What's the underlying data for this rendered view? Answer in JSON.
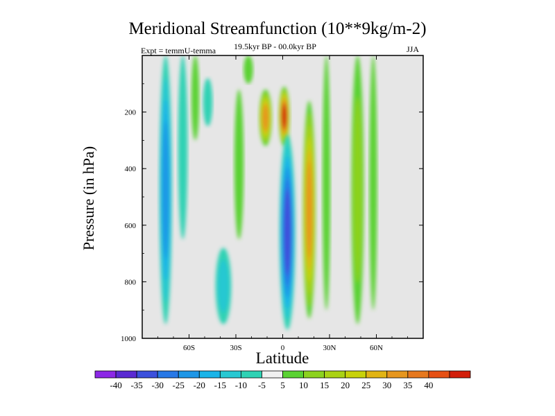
{
  "title": "Meridional Streamfunction (10**9kg/m-2)",
  "experiment_label": "Expt = temmU-temma",
  "period_label": "19.5kyr BP - 00.0kyr BP",
  "season_label": "JJA",
  "colors": {
    "background": "#e6e6e6",
    "levels": [
      "#8c28e6",
      "#5a2ad2",
      "#3c50dc",
      "#2878e6",
      "#1e96e6",
      "#1ab4e8",
      "#28c8d2",
      "#2ed2b4",
      "#f0f0f0",
      "#5ad232",
      "#8cd21e",
      "#aad214",
      "#c8d20a",
      "#e1b414",
      "#e6961e",
      "#e6781e",
      "#e65014",
      "#d21e0a"
    ]
  },
  "chart_data": {
    "type": "heatmap",
    "title": "Meridional Streamfunction (10**9kg/m-2)",
    "xlabel": "Latitude",
    "ylabel": "Pressure (in hPa)",
    "xlim": [
      -90,
      90
    ],
    "ylim": [
      1000,
      0
    ],
    "x_ticks": [
      {
        "value": -60,
        "label": "60S"
      },
      {
        "value": -30,
        "label": "30S"
      },
      {
        "value": 0,
        "label": "0"
      },
      {
        "value": 30,
        "label": "30N"
      },
      {
        "value": 60,
        "label": "60N"
      }
    ],
    "y_ticks": [
      {
        "value": 200,
        "label": "200"
      },
      {
        "value": 400,
        "label": "400"
      },
      {
        "value": 600,
        "label": "600"
      },
      {
        "value": 800,
        "label": "800"
      },
      {
        "value": 1000,
        "label": "1000"
      }
    ],
    "colorbar": {
      "levels": [
        -40,
        -35,
        -30,
        -25,
        -20,
        -15,
        -10,
        -5,
        5,
        10,
        15,
        20,
        25,
        30,
        35,
        40
      ],
      "labels": [
        "-40",
        "-35",
        "-30",
        "-25",
        "-20",
        "-15",
        "-10",
        "-5",
        "5",
        "10",
        "15",
        "20",
        "25",
        "30",
        "35",
        "40"
      ]
    },
    "features": [
      {
        "name": "blue-band-75S",
        "lat": -75,
        "width": 8,
        "p_top": 0,
        "p_bottom": 950,
        "peak": -22
      },
      {
        "name": "teal-band-65S",
        "lat": -64,
        "width": 6,
        "p_top": 0,
        "p_bottom": 650,
        "peak": -9
      },
      {
        "name": "teal-blob-30S",
        "lat": -38,
        "width": 10,
        "p_top": 680,
        "p_bottom": 950,
        "peak": -12
      },
      {
        "name": "teal-upper-45S",
        "lat": -48,
        "width": 6,
        "p_top": 80,
        "p_bottom": 250,
        "peak": -8
      },
      {
        "name": "green-band-55S",
        "lat": -56,
        "width": 5,
        "p_top": 0,
        "p_bottom": 300,
        "peak": 7
      },
      {
        "name": "green-band-30S",
        "lat": -28,
        "width": 6,
        "p_top": 120,
        "p_bottom": 650,
        "peak": 7
      },
      {
        "name": "green-band-20S",
        "lat": -22,
        "width": 6,
        "p_top": 0,
        "p_bottom": 100,
        "peak": 7
      },
      {
        "name": "red-core-12S",
        "lat": -11,
        "width": 8,
        "p_top": 120,
        "p_bottom": 320,
        "peak": 34
      },
      {
        "name": "red-core-2N",
        "lat": 1,
        "width": 7,
        "p_top": 110,
        "p_bottom": 320,
        "peak": 40
      },
      {
        "name": "blue-core-4N",
        "lat": 3,
        "width": 10,
        "p_top": 280,
        "p_bottom": 970,
        "peak": -30
      },
      {
        "name": "orange-band-18N",
        "lat": 17,
        "width": 8,
        "p_top": 160,
        "p_bottom": 930,
        "peak": 30
      },
      {
        "name": "green-band-28N",
        "lat": 28,
        "width": 5,
        "p_top": 0,
        "p_bottom": 900,
        "peak": 9
      },
      {
        "name": "green-yellow-band-50N",
        "lat": 48,
        "width": 8,
        "p_top": 0,
        "p_bottom": 950,
        "peak": 14
      },
      {
        "name": "green-band-60N",
        "lat": 58,
        "width": 5,
        "p_top": 0,
        "p_bottom": 900,
        "peak": 8
      }
    ]
  }
}
